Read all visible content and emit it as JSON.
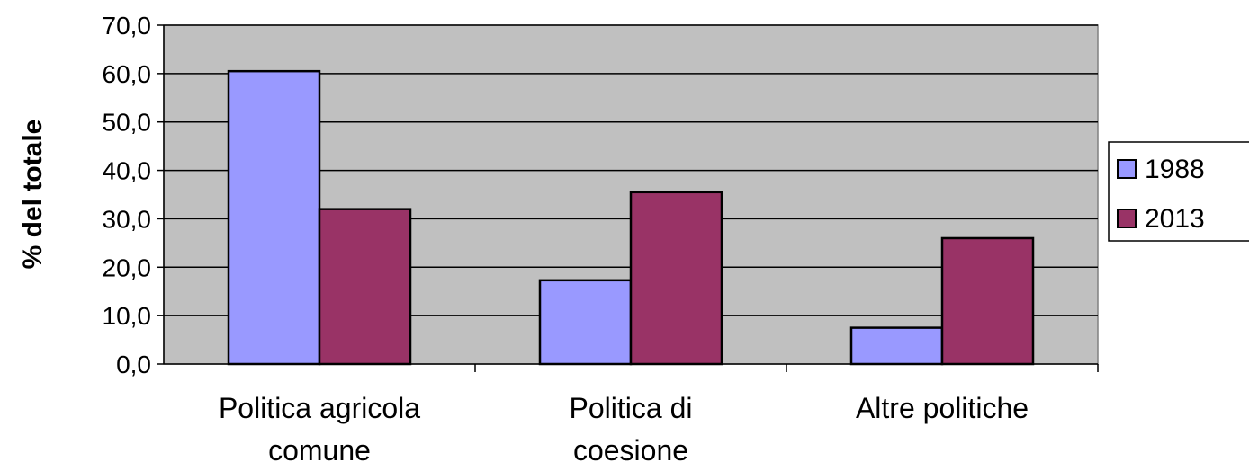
{
  "chart_data": {
    "type": "bar",
    "categories": [
      [
        "Politica agricola",
        "comune"
      ],
      [
        "Politica di",
        "coesione"
      ],
      [
        "Altre politiche"
      ]
    ],
    "series": [
      {
        "name": "1988",
        "values": [
          60.5,
          17.3,
          7.5
        ],
        "color": "#9999ff"
      },
      {
        "name": "2013",
        "values": [
          32.0,
          35.5,
          26.0
        ],
        "color": "#993366"
      }
    ],
    "title": "",
    "xlabel": "",
    "ylabel": "% del totale",
    "ylim": [
      0,
      70
    ],
    "yticks": [
      "0,0",
      "10,0",
      "20,0",
      "30,0",
      "40,0",
      "50,0",
      "60,0",
      "70,0"
    ],
    "grid": true,
    "plot_background": "#c0c0c0",
    "gridline_color": "#000000",
    "legend_position": "right"
  }
}
